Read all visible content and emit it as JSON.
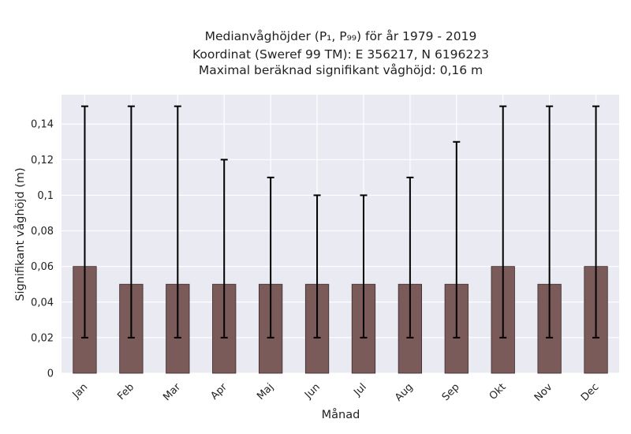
{
  "chart_data": {
    "type": "bar",
    "title_lines": [
      "Medianvåghöjder (P₁, P₉₉) för år 1979 - 2019",
      "Koordinat (Sweref 99 TM): E 356217, N 6196223",
      "Maximal beräknad signifikant våghöjd: 0,16 m"
    ],
    "xlabel": "Månad",
    "ylabel": "Signifikant våghöjd (m)",
    "categories": [
      "Jan",
      "Feb",
      "Mar",
      "Apr",
      "Maj",
      "Jun",
      "Jul",
      "Aug",
      "Sep",
      "Okt",
      "Nov",
      "Dec"
    ],
    "values": [
      0.06,
      0.05,
      0.05,
      0.05,
      0.05,
      0.05,
      0.05,
      0.05,
      0.05,
      0.06,
      0.05,
      0.06
    ],
    "error_low": [
      0.02,
      0.02,
      0.02,
      0.02,
      0.02,
      0.02,
      0.02,
      0.02,
      0.02,
      0.02,
      0.02,
      0.02
    ],
    "error_high": [
      0.15,
      0.15,
      0.15,
      0.12,
      0.11,
      0.1,
      0.1,
      0.11,
      0.13,
      0.15,
      0.15,
      0.15
    ],
    "yticks": [
      0,
      0.02,
      0.04,
      0.06,
      0.08,
      0.1,
      0.12,
      0.14
    ],
    "ytick_labels": [
      "0",
      "0,02",
      "0,04",
      "0,06",
      "0,08",
      "0,1",
      "0,12",
      "0,14"
    ],
    "ylim": [
      0,
      0.1565
    ],
    "grid": true,
    "colors": {
      "bar": "#7b5a5a",
      "bar_edge": "#3a2a2a",
      "plot_bg": "#eaeaf2",
      "grid": "#ffffff",
      "error": "#000000"
    }
  }
}
